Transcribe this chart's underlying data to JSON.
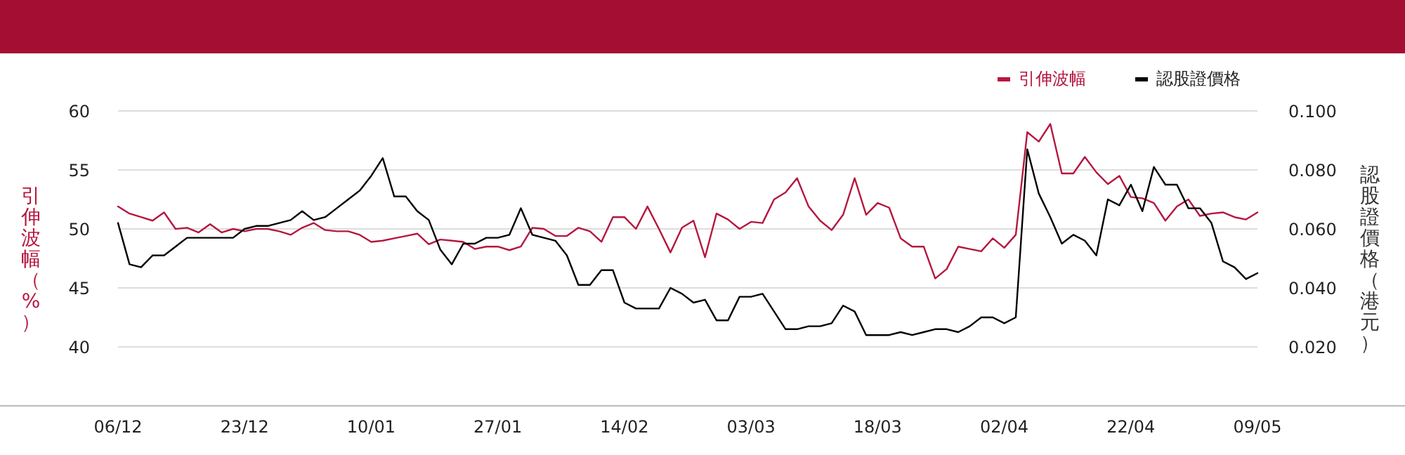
{
  "chart_data": {
    "type": "line",
    "ylabel": "引伸波幅（%）",
    "y2label": "認股證價格（港元）",
    "categories": [
      "06/12",
      null,
      null,
      null,
      null,
      null,
      null,
      null,
      null,
      null,
      null,
      "23/12",
      null,
      null,
      null,
      null,
      null,
      null,
      null,
      null,
      null,
      null,
      "10/01",
      null,
      null,
      null,
      null,
      null,
      null,
      null,
      null,
      null,
      null,
      "27/01",
      null,
      null,
      null,
      null,
      null,
      null,
      null,
      null,
      null,
      null,
      "14/02",
      null,
      null,
      null,
      null,
      null,
      null,
      null,
      null,
      null,
      null,
      "03/03",
      null,
      null,
      null,
      null,
      null,
      null,
      null,
      null,
      null,
      null,
      "18/03",
      null,
      null,
      null,
      null,
      null,
      null,
      null,
      null,
      null,
      null,
      "02/04",
      null,
      null,
      null,
      null,
      null,
      null,
      null,
      null,
      null,
      null,
      "22/04",
      null,
      null,
      null,
      null,
      null,
      null,
      null,
      null,
      null,
      null,
      "09/05"
    ],
    "series": [
      {
        "name": "引伸波幅",
        "color": "#b5173f",
        "values": [
          51.9,
          51.3,
          51.0,
          50.7,
          51.4,
          50.0,
          50.1,
          49.7,
          50.4,
          49.7,
          50.0,
          49.8,
          50.0,
          50.0,
          49.8,
          49.5,
          50.1,
          50.5,
          49.9,
          49.8,
          49.8,
          49.5,
          48.9,
          49.0,
          49.2,
          49.4,
          49.6,
          48.7,
          49.1,
          49.0,
          48.9,
          48.3,
          48.5,
          48.5,
          48.2,
          48.5,
          50.1,
          50.0,
          49.4,
          49.4,
          50.1,
          49.8,
          48.9,
          51.0,
          51.0,
          50.0,
          51.9,
          50.0,
          48.0,
          50.1,
          50.7,
          47.6,
          51.3,
          50.8,
          50.0,
          50.6,
          50.5,
          52.5,
          53.1,
          54.3,
          51.9,
          50.7,
          49.9,
          51.2,
          54.3,
          51.2,
          52.2,
          51.8,
          49.2,
          48.5,
          48.5,
          45.8,
          46.6,
          48.5,
          48.3,
          48.1,
          49.2,
          48.4,
          49.5,
          58.2,
          57.4,
          58.9,
          54.7,
          54.7,
          56.1,
          54.8,
          53.8,
          54.5,
          52.7,
          52.6,
          52.2,
          50.7,
          51.9,
          52.5,
          51.1,
          51.3,
          51.4,
          51.0,
          50.8,
          51.4
        ]
      },
      {
        "name": "認股證價格",
        "color": "#000000",
        "axis": "y2",
        "values": [
          0.062,
          0.048,
          0.047,
          0.051,
          0.051,
          0.054,
          0.057,
          0.057,
          0.057,
          0.057,
          0.057,
          0.06,
          0.061,
          0.061,
          0.062,
          0.063,
          0.066,
          0.063,
          0.064,
          0.067,
          0.07,
          0.073,
          0.078,
          0.084,
          0.071,
          0.071,
          0.066,
          0.063,
          0.053,
          0.048,
          0.055,
          0.055,
          0.057,
          0.057,
          0.058,
          0.067,
          0.058,
          0.057,
          0.056,
          0.051,
          0.041,
          0.041,
          0.046,
          0.046,
          0.035,
          0.033,
          0.033,
          0.033,
          0.04,
          0.038,
          0.035,
          0.036,
          0.029,
          0.029,
          0.037,
          0.037,
          0.038,
          0.032,
          0.026,
          0.026,
          0.027,
          0.027,
          0.028,
          0.034,
          0.032,
          0.024,
          0.024,
          0.024,
          0.025,
          0.024,
          0.025,
          0.026,
          0.026,
          0.025,
          0.027,
          0.03,
          0.03,
          0.028,
          0.03,
          0.087,
          0.072,
          0.064,
          0.055,
          0.058,
          0.056,
          0.051,
          0.07,
          0.068,
          0.075,
          0.066,
          0.081,
          0.075,
          0.075,
          0.067,
          0.067,
          0.062,
          0.049,
          0.047,
          0.043,
          0.045
        ]
      }
    ],
    "ylim": [
      35,
      60
    ],
    "yticks": [
      40,
      45,
      50,
      55,
      60
    ],
    "y2lim": [
      0,
      0.1
    ],
    "y2ticks": [
      {
        "value": 0.02,
        "label": "0.020"
      },
      {
        "value": 0.04,
        "label": "0.040"
      },
      {
        "value": 0.06,
        "label": "0.060"
      },
      {
        "value": 0.08,
        "label": "0.080"
      },
      {
        "value": 0.1,
        "label": "0.100"
      }
    ],
    "grid": "y",
    "legend": "top right",
    "marker": "none",
    "line_style": "solid"
  }
}
